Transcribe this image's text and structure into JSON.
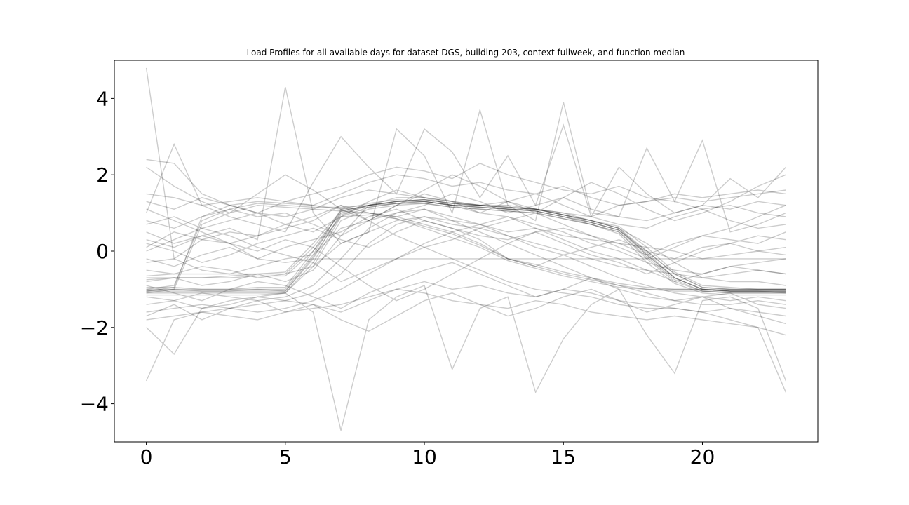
{
  "chart_data": {
    "type": "line",
    "title": "Load Profiles for all available days for dataset DGS, building 203, context fullweek, and function median",
    "xlabel": "",
    "ylabel": "",
    "xlim": [
      -1.15,
      24.15
    ],
    "ylim": [
      -5.0,
      5.0
    ],
    "x_ticks": [
      "0",
      "5",
      "10",
      "15",
      "20"
    ],
    "y_ticks": [
      "4",
      "2",
      "0",
      "−2",
      "−4"
    ],
    "x_tick_values": [
      0,
      5,
      10,
      15,
      20
    ],
    "y_tick_values": [
      4,
      2,
      0,
      -2,
      -4
    ],
    "grid": false,
    "legend": "none",
    "line_color": "#000000",
    "line_alpha": 0.2,
    "x": [
      0,
      1,
      2,
      3,
      4,
      5,
      6,
      7,
      8,
      9,
      10,
      11,
      12,
      13,
      14,
      15,
      16,
      17,
      18,
      19,
      20,
      21,
      22,
      23
    ],
    "series": [
      {
        "values": [
          -1.05,
          -1.05,
          -1.05,
          -1.05,
          -1.05,
          -1.05,
          -0.2,
          1.0,
          1.2,
          1.3,
          1.35,
          1.25,
          1.2,
          1.15,
          1.1,
          0.95,
          0.8,
          0.6,
          -0.1,
          -0.7,
          -1.0,
          -1.05,
          -1.05,
          -1.05
        ]
      },
      {
        "values": [
          -1.0,
          -1.0,
          -1.0,
          -1.0,
          -1.0,
          -1.0,
          -0.1,
          1.1,
          1.25,
          1.35,
          1.3,
          1.2,
          1.2,
          1.1,
          1.05,
          0.9,
          0.75,
          0.55,
          0.0,
          -0.6,
          -0.95,
          -1.0,
          -1.0,
          -1.0
        ]
      },
      {
        "values": [
          -1.1,
          -1.1,
          -1.1,
          -1.1,
          -1.1,
          -1.1,
          -0.3,
          0.9,
          1.15,
          1.25,
          1.3,
          1.2,
          1.15,
          1.1,
          1.05,
          0.9,
          0.7,
          0.5,
          -0.2,
          -0.8,
          -1.05,
          -1.1,
          -1.1,
          -1.1
        ]
      },
      {
        "values": [
          -0.95,
          -0.95,
          -1.0,
          -1.0,
          -0.95,
          -0.95,
          0.0,
          1.05,
          1.2,
          1.3,
          1.35,
          1.25,
          1.2,
          1.15,
          1.1,
          0.95,
          0.8,
          0.65,
          0.1,
          -0.55,
          -0.9,
          -0.95,
          -1.0,
          -1.0
        ]
      },
      {
        "values": [
          -1.15,
          -1.15,
          -1.15,
          -1.15,
          -1.15,
          -1.1,
          -0.4,
          0.8,
          1.1,
          1.2,
          1.25,
          1.15,
          1.1,
          1.05,
          1.0,
          0.85,
          0.7,
          0.45,
          -0.3,
          -0.85,
          -1.1,
          -1.15,
          -1.15,
          -1.15
        ]
      },
      {
        "values": [
          -1.05,
          -1.0,
          -1.05,
          -1.05,
          -1.0,
          -1.05,
          -0.15,
          0.95,
          1.2,
          1.3,
          1.3,
          1.2,
          1.15,
          1.1,
          1.1,
          0.95,
          0.75,
          0.55,
          -0.05,
          -0.7,
          -1.0,
          -1.05,
          -1.05,
          -1.1
        ]
      },
      {
        "values": [
          -1.0,
          -0.9,
          0.8,
          1.1,
          1.25,
          1.2,
          1.15,
          1.15,
          1.2,
          1.3,
          1.35,
          1.25,
          1.2,
          1.15,
          1.1,
          0.95,
          0.8,
          0.6,
          0.0,
          -0.6,
          -0.95,
          -1.0,
          -1.0,
          -1.0
        ]
      },
      {
        "values": [
          -1.05,
          -0.95,
          0.9,
          1.2,
          1.3,
          1.25,
          1.2,
          1.1,
          1.15,
          1.25,
          1.3,
          1.2,
          1.15,
          1.1,
          1.05,
          0.9,
          0.75,
          0.55,
          -0.1,
          -0.7,
          -1.0,
          -1.05,
          -1.05,
          -1.05
        ]
      },
      {
        "values": [
          -1.1,
          -1.0,
          0.7,
          1.0,
          1.2,
          1.15,
          1.1,
          1.05,
          1.2,
          1.25,
          1.25,
          1.15,
          1.1,
          1.05,
          1.0,
          0.85,
          0.7,
          0.5,
          -0.15,
          -0.75,
          -1.05,
          -1.1,
          -1.1,
          -1.1
        ]
      },
      {
        "values": [
          -0.7,
          -0.7,
          -0.7,
          -0.65,
          -0.6,
          -0.6,
          0.1,
          1.0,
          1.0,
          0.9,
          0.7,
          0.5,
          0.2,
          -0.2,
          -0.4,
          -0.6,
          -0.75,
          -0.9,
          -1.0,
          -1.0,
          -1.0,
          -1.05,
          -1.05,
          -1.05
        ]
      },
      {
        "values": [
          -0.65,
          -0.6,
          -0.6,
          -0.6,
          -0.6,
          -0.55,
          0.2,
          1.05,
          1.0,
          0.85,
          0.6,
          0.35,
          0.1,
          -0.25,
          -0.45,
          -0.65,
          -0.8,
          -0.95,
          -1.0,
          -1.05,
          -1.05,
          -1.05,
          -1.05,
          -1.05
        ]
      },
      {
        "values": [
          -0.75,
          -0.7,
          -0.7,
          -0.7,
          -0.65,
          -0.65,
          0.0,
          0.9,
          0.95,
          0.85,
          0.65,
          0.45,
          0.15,
          -0.2,
          -0.35,
          -0.55,
          -0.7,
          -0.85,
          -0.95,
          -1.0,
          -1.0,
          -1.0,
          -1.0,
          -1.0
        ]
      },
      {
        "values": [
          4.8,
          -0.2,
          0.3,
          0.5,
          0.4,
          0.6,
          0.8,
          1.2,
          1.0,
          0.9,
          1.1,
          0.8,
          0.7,
          0.5,
          0.6,
          0.4,
          0.3,
          0.2,
          0.1,
          0.0,
          -0.2,
          -0.1,
          0.0,
          0.1
        ]
      },
      {
        "values": [
          2.4,
          2.3,
          1.5,
          1.2,
          1.0,
          0.9,
          1.1,
          1.4,
          1.6,
          1.5,
          1.4,
          1.3,
          1.2,
          1.3,
          1.1,
          1.0,
          0.9,
          1.2,
          1.3,
          1.4,
          1.3,
          1.4,
          1.5,
          1.6
        ]
      },
      {
        "values": [
          0.1,
          0.5,
          0.3,
          0.2,
          -0.2,
          0.1,
          0.3,
          0.5,
          0.9,
          1.1,
          0.8,
          0.6,
          0.4,
          0.3,
          0.5,
          0.6,
          0.4,
          0.2,
          -0.1,
          0.2,
          0.4,
          0.3,
          0.2,
          0.5
        ]
      },
      {
        "values": [
          -0.3,
          -0.2,
          -0.5,
          -0.6,
          -0.4,
          -0.2,
          -0.1,
          0.6,
          0.8,
          1.2,
          1.5,
          1.3,
          1.0,
          0.9,
          0.7,
          0.5,
          0.2,
          0.0,
          -0.3,
          -0.5,
          -0.6,
          -0.4,
          -0.5,
          -0.6
        ]
      },
      {
        "values": [
          0.8,
          0.6,
          0.9,
          1.1,
          0.9,
          1.0,
          0.7,
          0.4,
          0.8,
          1.0,
          1.2,
          1.5,
          1.3,
          1.0,
          1.2,
          1.4,
          1.1,
          0.9,
          0.8,
          1.0,
          1.2,
          1.1,
          1.3,
          1.2
        ]
      },
      {
        "values": [
          1.5,
          1.4,
          1.2,
          1.3,
          1.4,
          1.3,
          1.2,
          1.5,
          1.8,
          2.0,
          1.9,
          1.7,
          1.8,
          1.6,
          1.5,
          1.7,
          1.4,
          1.2,
          1.3,
          1.5,
          1.4,
          1.5,
          1.6,
          1.5
        ]
      },
      {
        "values": [
          -1.6,
          -1.5,
          -1.4,
          -1.5,
          -1.6,
          -1.5,
          -1.3,
          -1.0,
          -0.6,
          -0.2,
          0.1,
          -0.2,
          -0.5,
          -0.8,
          -1.0,
          -1.1,
          -1.2,
          -1.4,
          -1.5,
          -1.5,
          -1.6,
          -1.5,
          -1.6,
          -1.7
        ]
      },
      {
        "values": [
          -1.8,
          -1.7,
          -1.6,
          -1.7,
          -1.8,
          -1.6,
          -1.5,
          -1.4,
          -1.2,
          -1.0,
          -1.1,
          -1.3,
          -1.4,
          -1.5,
          -1.3,
          -1.4,
          -1.6,
          -1.7,
          -1.8,
          -1.7,
          -1.8,
          -1.9,
          -2.0,
          -2.2
        ]
      },
      {
        "values": [
          -3.4,
          -1.8,
          -1.6,
          -1.5,
          -1.4,
          -1.3,
          -1.4,
          -1.6,
          -1.3,
          -1.0,
          -0.8,
          -1.0,
          -0.9,
          -1.1,
          -1.2,
          -1.0,
          -1.1,
          -1.3,
          -1.4,
          -1.5,
          -1.6,
          -1.8,
          -2.0,
          -3.7
        ]
      },
      {
        "values": [
          -2.0,
          -2.7,
          -1.5,
          -1.3,
          -1.2,
          -1.1,
          -1.6,
          -4.7,
          -1.8,
          -1.2,
          -0.9,
          -3.1,
          -1.5,
          -1.2,
          -3.7,
          -2.3,
          -1.4,
          -1.0,
          -2.2,
          -3.2,
          -1.3,
          -1.2,
          -1.5,
          -3.4
        ]
      },
      {
        "values": [
          0.5,
          0.2,
          0.4,
          0.6,
          0.3,
          4.3,
          1.0,
          0.2,
          0.5,
          3.2,
          2.5,
          1.0,
          3.7,
          1.2,
          0.8,
          3.9,
          1.0,
          0.9,
          2.7,
          1.3,
          2.9,
          0.5,
          0.7,
          1.0
        ]
      },
      {
        "values": [
          1.0,
          2.8,
          1.2,
          0.9,
          0.7,
          0.5,
          1.8,
          3.0,
          2.2,
          1.5,
          3.2,
          2.6,
          1.4,
          2.5,
          1.2,
          3.3,
          0.9,
          2.2,
          1.5,
          1.0,
          1.2,
          1.9,
          1.4,
          2.2
        ]
      },
      {
        "values": [
          0.2,
          0.0,
          -0.3,
          -0.1,
          0.2,
          0.4,
          0.6,
          0.3,
          0.1,
          0.5,
          0.8,
          0.6,
          0.3,
          -0.2,
          -0.4,
          -0.1,
          0.1,
          0.3,
          0.0,
          -0.2,
          0.1,
          0.2,
          0.0,
          -0.1
        ]
      },
      {
        "values": [
          -0.5,
          -0.6,
          -0.4,
          -0.5,
          -0.7,
          -0.6,
          -0.4,
          0.2,
          0.5,
          0.8,
          0.9,
          0.7,
          0.6,
          0.4,
          0.2,
          0.0,
          -0.2,
          -0.4,
          -0.5,
          -0.6,
          -0.7,
          -0.6,
          -0.5,
          -0.6
        ]
      },
      {
        "values": [
          1.3,
          1.1,
          1.4,
          1.2,
          1.0,
          1.3,
          1.5,
          1.7,
          2.0,
          2.2,
          2.1,
          1.9,
          2.3,
          2.0,
          1.8,
          1.6,
          1.5,
          1.7,
          1.4,
          1.3,
          1.1,
          1.2,
          1.0,
          0.9
        ]
      },
      {
        "values": [
          -1.2,
          -1.3,
          -1.1,
          -1.2,
          -1.3,
          -1.2,
          -0.9,
          -0.2,
          0.6,
          1.0,
          1.1,
          0.9,
          0.7,
          0.4,
          0.1,
          -0.1,
          -0.4,
          -0.7,
          -0.9,
          -1.1,
          -1.2,
          -1.3,
          -1.2,
          -1.3
        ]
      },
      {
        "values": [
          0.0,
          0.3,
          0.6,
          0.4,
          0.1,
          -0.1,
          -0.3,
          -0.8,
          -0.5,
          -0.2,
          0.2,
          0.5,
          0.7,
          0.9,
          0.6,
          0.3,
          0.0,
          -0.2,
          -0.5,
          -0.8,
          -0.6,
          -0.4,
          -0.3,
          -0.2
        ]
      },
      {
        "values": [
          -0.9,
          -1.1,
          -1.3,
          -1.0,
          -0.8,
          -0.9,
          -1.2,
          -1.5,
          -1.1,
          -0.8,
          -0.5,
          -0.3,
          -0.6,
          -0.9,
          -1.2,
          -1.0,
          -0.7,
          -0.9,
          -1.1,
          -1.3,
          -1.2,
          -1.1,
          -1.4,
          -1.5
        ]
      },
      {
        "values": [
          0.7,
          0.9,
          0.6,
          0.8,
          1.0,
          0.7,
          0.5,
          0.9,
          1.3,
          1.6,
          1.4,
          1.2,
          1.0,
          1.3,
          1.5,
          1.2,
          0.9,
          0.7,
          0.6,
          0.9,
          1.1,
          0.8,
          0.6,
          0.7
        ]
      },
      {
        "values": [
          -0.2,
          -0.4,
          -0.1,
          0.1,
          -0.2,
          -0.3,
          -0.2,
          -0.2,
          -0.2,
          -0.2,
          -0.2,
          -0.2,
          -0.2,
          -0.2,
          -0.2,
          -0.2,
          -0.2,
          -0.2,
          -0.2,
          -0.2,
          -0.2,
          -0.2,
          -0.2,
          -0.2
        ]
      },
      {
        "values": [
          -1.4,
          -1.3,
          -1.5,
          -1.4,
          -1.2,
          -1.3,
          -1.1,
          -0.6,
          0.2,
          0.7,
          0.9,
          0.8,
          0.5,
          0.2,
          -0.1,
          -0.4,
          -0.7,
          -1.0,
          -1.2,
          -1.3,
          -1.4,
          -1.4,
          -1.3,
          -1.4
        ]
      },
      {
        "values": [
          1.1,
          0.8,
          0.5,
          0.2,
          0.4,
          0.7,
          0.9,
          1.2,
          0.8,
          0.4,
          0.1,
          0.3,
          0.6,
          0.8,
          1.0,
          0.7,
          0.4,
          0.1,
          -0.2,
          0.1,
          0.4,
          0.6,
          0.9,
          1.2
        ]
      },
      {
        "values": [
          -0.8,
          -0.7,
          -0.9,
          -0.8,
          -0.6,
          -0.8,
          -0.5,
          0.4,
          1.2,
          1.4,
          1.4,
          1.3,
          1.2,
          1.2,
          1.1,
          1.0,
          0.8,
          0.6,
          0.2,
          -0.3,
          -0.7,
          -0.8,
          -0.8,
          -0.9
        ]
      },
      {
        "values": [
          0.3,
          0.1,
          0.4,
          0.2,
          0.0,
          0.3,
          0.1,
          -0.4,
          -0.9,
          -1.3,
          -1.0,
          -0.6,
          -0.2,
          0.2,
          0.5,
          0.2,
          -0.1,
          -0.3,
          -0.6,
          -0.3,
          0.0,
          0.2,
          0.4,
          0.3
        ]
      },
      {
        "values": [
          2.2,
          1.7,
          1.3,
          1.0,
          1.5,
          2.0,
          1.6,
          1.1,
          0.8,
          1.2,
          1.6,
          2.0,
          1.7,
          1.3,
          1.0,
          1.4,
          1.8,
          1.5,
          1.1,
          0.8,
          1.0,
          1.3,
          1.7,
          2.0
        ]
      },
      {
        "values": [
          -1.7,
          -1.4,
          -1.8,
          -1.5,
          -1.3,
          -1.6,
          -1.4,
          -1.8,
          -2.1,
          -1.7,
          -1.3,
          -1.1,
          -1.4,
          -1.7,
          -1.5,
          -1.2,
          -1.0,
          -1.3,
          -1.6,
          -1.4,
          -1.2,
          -1.5,
          -1.7,
          -1.9
        ]
      }
    ]
  }
}
